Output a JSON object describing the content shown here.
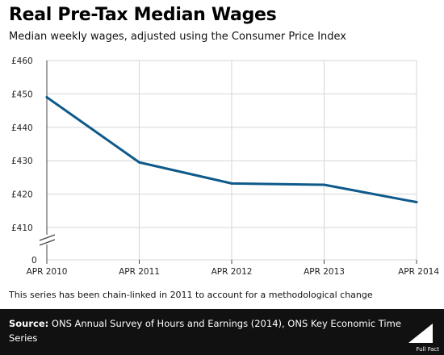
{
  "header": {
    "title": "Real Pre-Tax Median Wages",
    "subtitle": "Median weekly wages, adjusted using the Consumer Price Index"
  },
  "footnote": "This series has been chain-linked in 2011 to account for a methodological change",
  "footer": {
    "source_label": "Source:",
    "source_text": "ONS Annual Survey of Hours and Earnings (2014), ONS Key Economic Time Series",
    "logo_text": "Full Fact"
  },
  "colors": {
    "line": "#0e5a8a",
    "grid": "#d6d6d6",
    "axis": "#444444",
    "footer_bg": "#111111"
  },
  "chart_data": {
    "type": "line",
    "title": "Real Pre-Tax Median Wages",
    "subtitle": "Median weekly wages, adjusted using the Consumer Price Index",
    "xlabel": "",
    "ylabel": "",
    "categories": [
      "APR 2010",
      "APR 2011",
      "APR 2012",
      "APR 2013",
      "APR 2014"
    ],
    "series": [
      {
        "values": [
          449,
          429.5,
          423.2,
          422.8,
          417.6
        ]
      }
    ],
    "y_ticks": [
      460,
      450,
      440,
      430,
      420,
      410
    ],
    "y_tick_labels": [
      "£460",
      "£450",
      "£440",
      "£430",
      "£420",
      "£410"
    ],
    "y_break_label": "0",
    "ylim": [
      410,
      460
    ],
    "axis_break": true,
    "grid": true
  }
}
